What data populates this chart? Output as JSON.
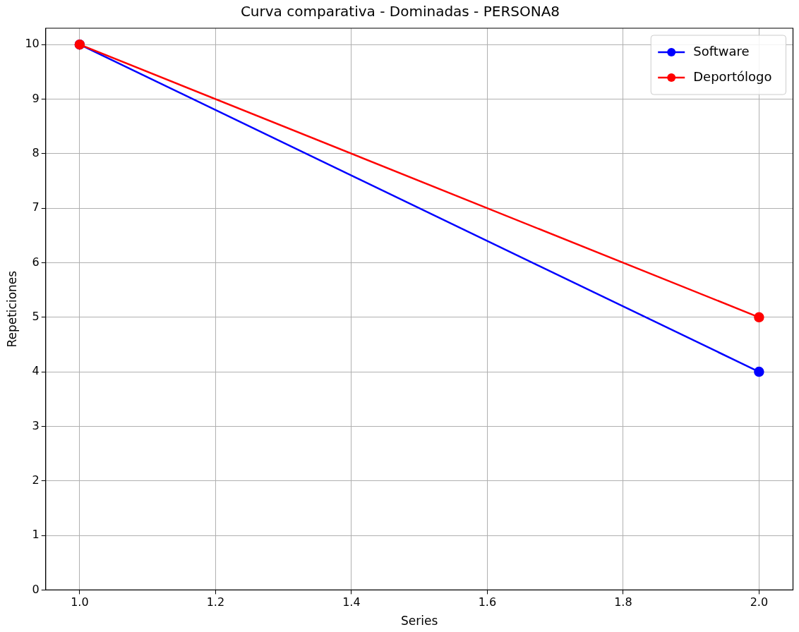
{
  "chart_data": {
    "type": "line",
    "title": "Curva comparativa - Dominadas - PERSONA8",
    "xlabel": "Series",
    "ylabel": "Repeticiones",
    "x": [
      1.0,
      2.0
    ],
    "series": [
      {
        "name": "Software",
        "color": "#0000ff",
        "values": [
          10,
          4
        ]
      },
      {
        "name": "Deportólogo",
        "color": "#ff0000",
        "values": [
          10,
          5
        ]
      }
    ],
    "xlim": [
      0.95,
      2.05
    ],
    "xticks": [
      {
        "value": 1.0,
        "label": "1.0"
      },
      {
        "value": 1.2,
        "label": "1.2"
      },
      {
        "value": 1.4,
        "label": "1.4"
      },
      {
        "value": 1.6,
        "label": "1.6"
      },
      {
        "value": 1.8,
        "label": "1.8"
      },
      {
        "value": 2.0,
        "label": "2.0"
      }
    ],
    "ylim": [
      0,
      10.3
    ],
    "yticks": [
      0,
      1,
      2,
      3,
      4,
      5,
      6,
      7,
      8,
      9,
      10
    ],
    "grid": true,
    "legend": "top right",
    "marker": "circle",
    "line_style": "solid"
  }
}
